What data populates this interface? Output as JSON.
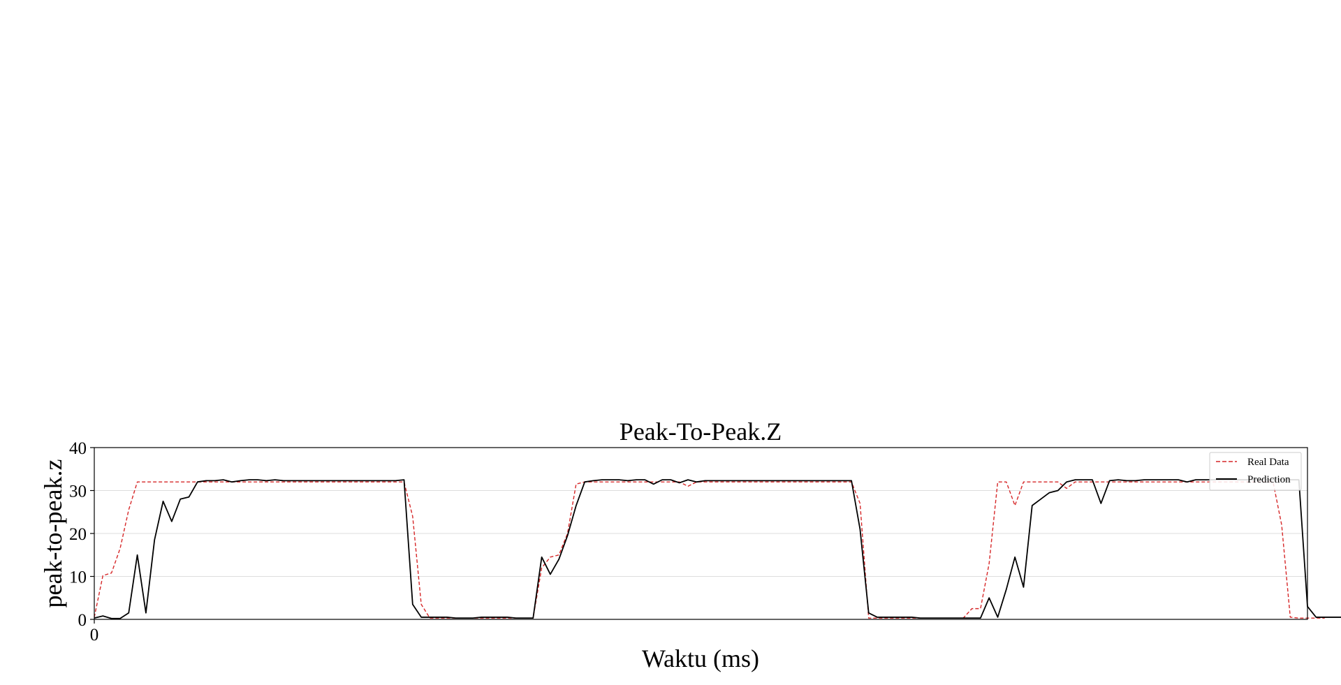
{
  "chart_data": {
    "type": "line",
    "title": "Peak-To-Peak.Z",
    "xlabel": "Waktu (ms)",
    "ylabel": "peak-to-peak.z",
    "xlim": [
      0,
      141
    ],
    "ylim": [
      0,
      40
    ],
    "x_ticks": [
      0
    ],
    "y_ticks": [
      0,
      10,
      20,
      30,
      40
    ],
    "grid": "horizontal",
    "legend_position": "upper-right",
    "series": [
      {
        "name": "Real Data",
        "color": "#d62728",
        "style": "dashed",
        "values": [
          0.5,
          10.2,
          10.8,
          16.5,
          25.5,
          32.0,
          32.0,
          32.0,
          32.0,
          32.0,
          32.0,
          32.0,
          32.0,
          32.0,
          32.0,
          32.0,
          32.0,
          32.0,
          32.0,
          32.0,
          32.0,
          32.0,
          32.0,
          32.0,
          32.0,
          32.0,
          32.0,
          32.0,
          32.0,
          32.0,
          32.0,
          32.0,
          32.0,
          32.0,
          32.0,
          32.0,
          32.0,
          24.0,
          3.5,
          0.3,
          0.3,
          0.3,
          0.3,
          0.3,
          0.3,
          0.3,
          0.3,
          0.3,
          0.3,
          0.3,
          0.3,
          0.3,
          12.0,
          14.5,
          15.0,
          20.0,
          31.5,
          32.0,
          32.0,
          32.0,
          32.0,
          32.0,
          32.0,
          32.0,
          32.0,
          32.0,
          32.0,
          32.0,
          32.0,
          31.0,
          32.0,
          32.0,
          32.0,
          32.0,
          32.0,
          32.0,
          32.0,
          32.0,
          32.0,
          32.0,
          32.0,
          32.0,
          32.0,
          32.0,
          32.0,
          32.0,
          32.0,
          32.0,
          32.0,
          27.0,
          0.3,
          0.3,
          0.3,
          0.3,
          0.3,
          0.3,
          0.3,
          0.3,
          0.3,
          0.3,
          0.3,
          0.3,
          2.5,
          2.5,
          13.0,
          32.0,
          32.0,
          26.5,
          32.0,
          32.0,
          32.0,
          32.0,
          32.0,
          30.5,
          32.0,
          32.0,
          32.0,
          32.0,
          32.0,
          32.0,
          32.0,
          32.0,
          32.0,
          32.0,
          32.0,
          32.0,
          32.0,
          32.0,
          32.0,
          32.0,
          32.0,
          32.0,
          32.0,
          32.0,
          32.0,
          32.0,
          32.0,
          32.0,
          22.0,
          0.5,
          0.3,
          0.3,
          0.3,
          0.3
        ]
      },
      {
        "name": "Prediction",
        "color": "#000000",
        "style": "solid",
        "values": [
          0.3,
          0.8,
          0.2,
          0.2,
          1.5,
          15.0,
          1.5,
          18.5,
          27.5,
          22.8,
          28.0,
          28.5,
          32.0,
          32.3,
          32.3,
          32.5,
          32.0,
          32.3,
          32.5,
          32.5,
          32.3,
          32.5,
          32.3,
          32.3,
          32.3,
          32.3,
          32.3,
          32.3,
          32.3,
          32.3,
          32.3,
          32.3,
          32.3,
          32.3,
          32.3,
          32.3,
          32.5,
          3.5,
          0.5,
          0.5,
          0.5,
          0.5,
          0.3,
          0.3,
          0.3,
          0.5,
          0.5,
          0.5,
          0.5,
          0.3,
          0.3,
          0.3,
          14.5,
          10.5,
          14.0,
          19.5,
          26.5,
          32.0,
          32.3,
          32.5,
          32.5,
          32.5,
          32.3,
          32.5,
          32.5,
          31.5,
          32.5,
          32.5,
          31.8,
          32.5,
          32.0,
          32.3,
          32.3,
          32.3,
          32.3,
          32.3,
          32.3,
          32.3,
          32.3,
          32.3,
          32.3,
          32.3,
          32.3,
          32.3,
          32.3,
          32.3,
          32.3,
          32.3,
          32.3,
          21.0,
          1.5,
          0.5,
          0.5,
          0.5,
          0.5,
          0.5,
          0.3,
          0.3,
          0.3,
          0.3,
          0.3,
          0.3,
          0.3,
          0.3,
          5.0,
          0.5,
          7.0,
          14.5,
          7.5,
          26.5,
          28.0,
          29.5,
          30.0,
          32.0,
          32.5,
          32.5,
          32.5,
          27.0,
          32.3,
          32.5,
          32.3,
          32.3,
          32.5,
          32.5,
          32.5,
          32.5,
          32.5,
          32.0,
          32.5,
          32.5,
          32.5,
          32.5,
          32.5,
          32.5,
          32.5,
          32.5,
          32.5,
          32.5,
          32.5,
          32.5,
          32.5,
          3.0,
          0.5,
          0.5,
          0.5,
          0.5
        ]
      }
    ]
  }
}
